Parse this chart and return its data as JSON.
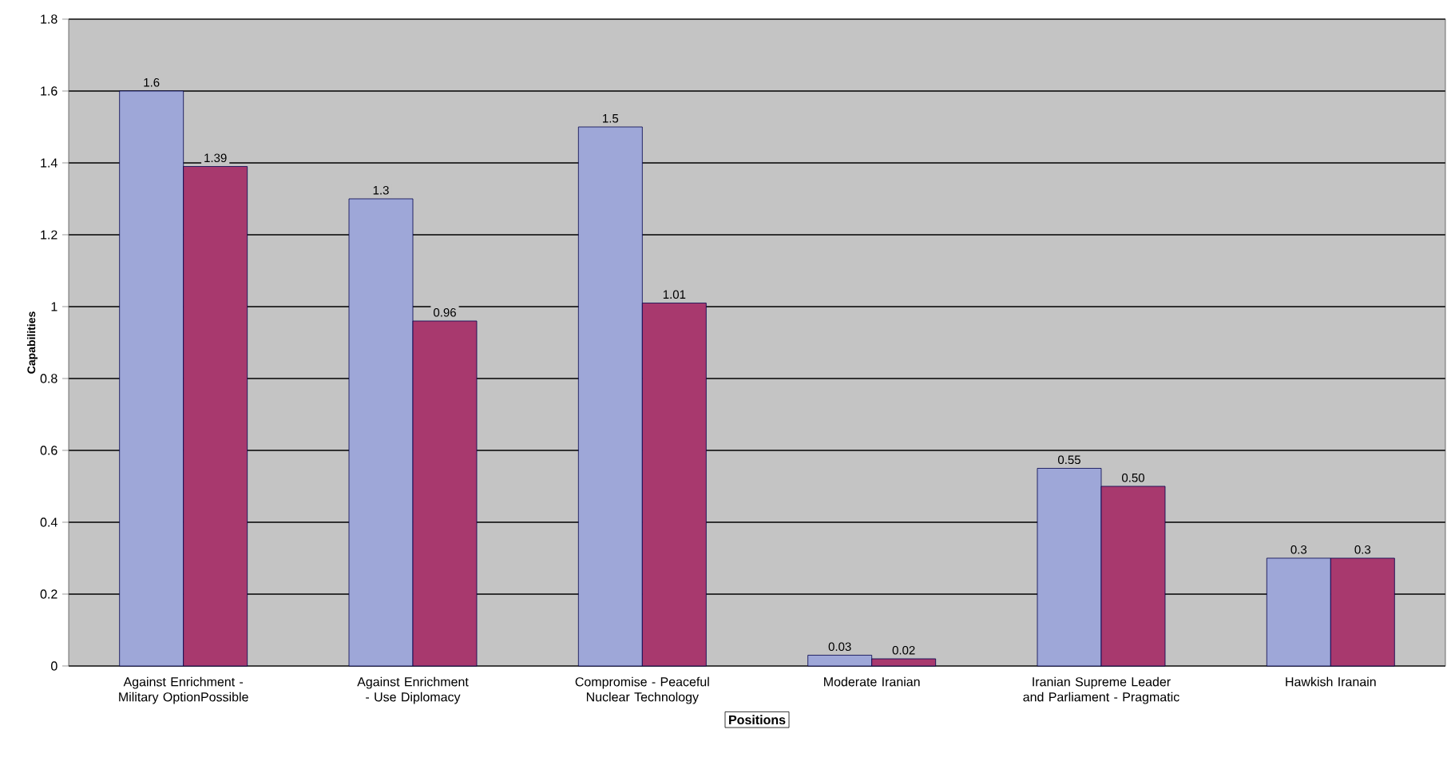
{
  "chart_data": {
    "type": "bar",
    "xlabel": "Positions",
    "ylabel": "Capabilities",
    "categories": [
      "Against Enrichment - Military OptionPossible",
      "Against Enrichment - Use Diplomacy",
      "Compromise - Peaceful Nuclear Technology",
      "Moderate Iranian",
      "Iranian Supreme Leader and Parliament - Pragmatic",
      "Hawkish Iranain"
    ],
    "series": [
      {
        "color": "#9ea7d8",
        "values": [
          1.6,
          1.3,
          1.5,
          0.03,
          0.55,
          0.3
        ],
        "value_labels": [
          "1.6",
          "1.3",
          "1.5",
          "0.03",
          "0.55",
          "0.3"
        ]
      },
      {
        "color": "#a8396e",
        "values": [
          1.39,
          0.96,
          1.01,
          0.02,
          0.5,
          0.3
        ],
        "value_labels": [
          "1.39",
          "0.96",
          "1.01",
          "0.02",
          "0.50",
          "0.3"
        ]
      }
    ],
    "ylim": [
      0,
      1.8
    ],
    "yticks": [
      0,
      0.2,
      0.4,
      0.6,
      0.8,
      1,
      1.2,
      1.4,
      1.6,
      1.8
    ],
    "grid": "y"
  }
}
